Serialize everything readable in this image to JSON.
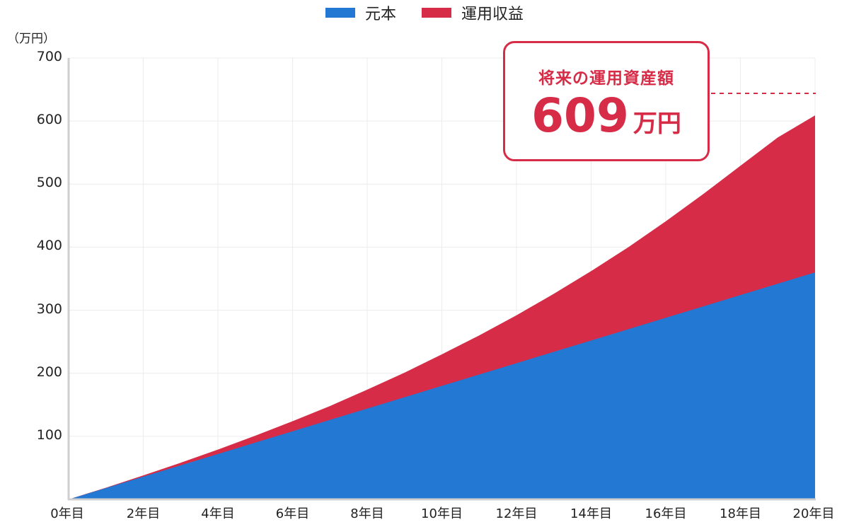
{
  "legend": {
    "items": [
      {
        "label": "元本",
        "color": "#2278d2"
      },
      {
        "label": "運用収益",
        "color": "#d62c47"
      }
    ]
  },
  "axis": {
    "unit_label": "（万円）",
    "y_ticks": [
      "700",
      "600",
      "500",
      "400",
      "300",
      "200",
      "100"
    ],
    "x_ticks": [
      "0年目",
      "2年目",
      "4年目",
      "6年目",
      "8年目",
      "10年目",
      "12年目",
      "14年目",
      "16年目",
      "18年目",
      "20年目"
    ]
  },
  "callout": {
    "title": "将来の運用資産額",
    "value": "609",
    "unit": "万円"
  },
  "chart_data": {
    "type": "area",
    "stacked": true,
    "title": "",
    "xlabel": "",
    "ylabel": "（万円）",
    "ylim": [
      0,
      700
    ],
    "grid": true,
    "legend_position": "top",
    "categories": [
      "0年目",
      "1年目",
      "2年目",
      "3年目",
      "4年目",
      "5年目",
      "6年目",
      "7年目",
      "8年目",
      "9年目",
      "10年目",
      "11年目",
      "12年目",
      "13年目",
      "14年目",
      "15年目",
      "16年目",
      "17年目",
      "18年目",
      "19年目",
      "20年目"
    ],
    "series": [
      {
        "name": "元本",
        "color": "#2278d2",
        "values": [
          0,
          18,
          36,
          54,
          72,
          90,
          108,
          126,
          144,
          162,
          180,
          198,
          216,
          234,
          252,
          270,
          288,
          306,
          324,
          342,
          360
        ]
      },
      {
        "name": "運用収益",
        "color": "#d62c47",
        "values": [
          0,
          0.5,
          2,
          4,
          7,
          11,
          16,
          22,
          30,
          39,
          50,
          62,
          76,
          92,
          110,
          130,
          153,
          178,
          205,
          232,
          249
        ]
      }
    ],
    "totals": [
      0,
      18.5,
      38,
      58,
      79,
      101,
      124,
      148,
      174,
      201,
      230,
      260,
      292,
      326,
      362,
      400,
      441,
      484,
      529,
      574,
      609
    ],
    "annotations": [
      {
        "text": "将来の運用資産額 609万円",
        "x": "20年目",
        "y": 609
      }
    ]
  }
}
